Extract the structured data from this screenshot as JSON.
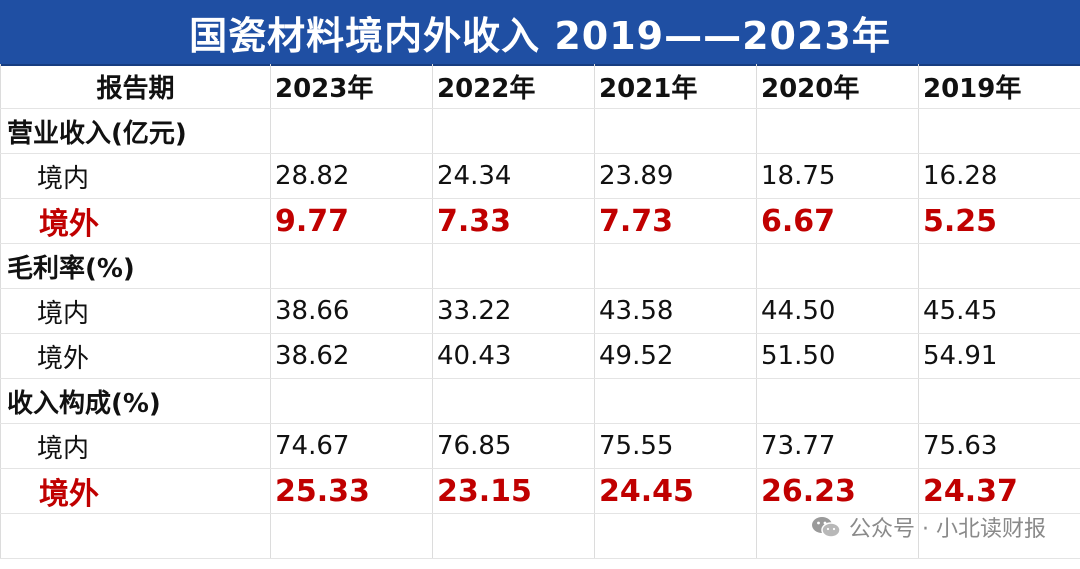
{
  "title": "国瓷材料境内外收入 2019——2023年",
  "header": {
    "label": "报告期",
    "years": [
      "2023年",
      "2022年",
      "2021年",
      "2020年",
      "2019年"
    ]
  },
  "sections": [
    {
      "label": "营业收入(亿元)",
      "rows": [
        {
          "label": "境内",
          "values": [
            "28.82",
            "24.34",
            "23.89",
            "18.75",
            "16.28"
          ]
        },
        {
          "label": "境外",
          "values": [
            "9.77",
            "7.33",
            "7.73",
            "6.67",
            "5.25"
          ]
        }
      ]
    },
    {
      "label": "毛利率(%)",
      "rows": [
        {
          "label": "境内",
          "values": [
            "38.66",
            "33.22",
            "43.58",
            "44.50",
            "45.45"
          ]
        },
        {
          "label": "境外",
          "values": [
            "38.62",
            "40.43",
            "49.52",
            "51.50",
            "54.91"
          ]
        }
      ]
    },
    {
      "label": "收入构成(%)",
      "rows": [
        {
          "label": "境内",
          "values": [
            "74.67",
            "76.85",
            "75.55",
            "73.77",
            "75.63"
          ]
        },
        {
          "label": "境外",
          "values": [
            "25.33",
            "23.15",
            "24.45",
            "26.23",
            "24.37"
          ]
        }
      ]
    }
  ],
  "colors": {
    "title_bg": "#1f4fa3",
    "highlight": "#c00000"
  },
  "watermark": {
    "text": "公众号 · 小北读财报",
    "icon": "wechat-icon"
  }
}
